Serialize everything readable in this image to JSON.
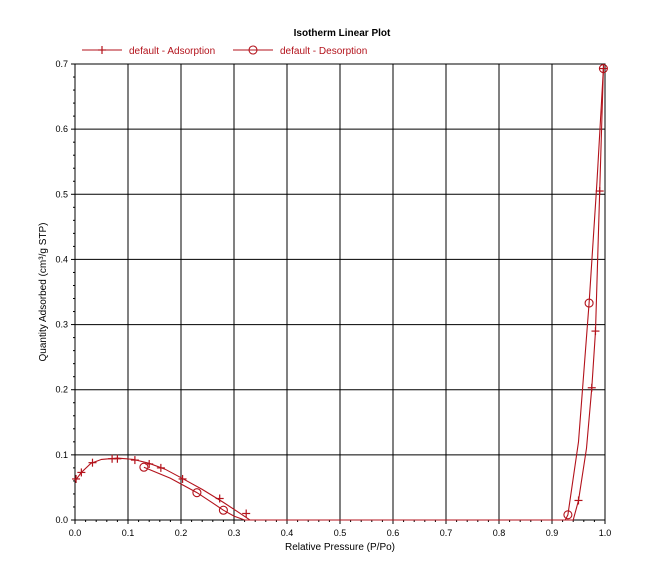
{
  "chart_data": {
    "type": "line",
    "title": "Isotherm Linear Plot",
    "xlabel": "Relative Pressure (P/Po)",
    "ylabel": "Quantity Adsorbed (cm³/g STP)",
    "xlim": [
      0,
      1.0
    ],
    "ylim": [
      0,
      0.7
    ],
    "x_ticks": [
      "0.0",
      "0.1",
      "0.2",
      "0.3",
      "0.4",
      "0.5",
      "0.6",
      "0.7",
      "0.8",
      "0.9",
      "1.0"
    ],
    "y_ticks": [
      "0.0",
      "0.1",
      "0.2",
      "0.3",
      "0.4",
      "0.5",
      "0.6",
      "0.7"
    ],
    "grid": true,
    "legend_position": "top-left",
    "series": [
      {
        "name": "default - Adsorption",
        "color": "#b3121b",
        "marker": "plus",
        "points": [
          [
            0.002,
            0.063
          ],
          [
            0.012,
            0.073
          ],
          [
            0.033,
            0.088
          ],
          [
            0.07,
            0.094
          ],
          [
            0.08,
            0.094
          ],
          [
            0.113,
            0.092
          ],
          [
            0.14,
            0.086
          ],
          [
            0.162,
            0.08
          ],
          [
            0.203,
            0.063
          ],
          [
            0.273,
            0.033
          ],
          [
            0.323,
            0.01
          ],
          [
            0.95,
            0.03
          ],
          [
            0.975,
            0.203
          ],
          [
            0.982,
            0.29
          ],
          [
            0.99,
            0.505
          ],
          [
            0.997,
            0.693
          ]
        ],
        "curve": [
          [
            0.0,
            0.06
          ],
          [
            0.012,
            0.073
          ],
          [
            0.03,
            0.087
          ],
          [
            0.05,
            0.093
          ],
          [
            0.08,
            0.095
          ],
          [
            0.11,
            0.093
          ],
          [
            0.14,
            0.087
          ],
          [
            0.17,
            0.078
          ],
          [
            0.2,
            0.065
          ],
          [
            0.24,
            0.047
          ],
          [
            0.28,
            0.027
          ],
          [
            0.31,
            0.011
          ],
          [
            0.33,
            0.0
          ],
          [
            0.94,
            0.0
          ],
          [
            0.95,
            0.03
          ],
          [
            0.965,
            0.11
          ],
          [
            0.975,
            0.203
          ],
          [
            0.982,
            0.29
          ],
          [
            0.99,
            0.505
          ],
          [
            0.997,
            0.693
          ]
        ]
      },
      {
        "name": "default - Desorption",
        "color": "#b3121b",
        "marker": "circle",
        "points": [
          [
            0.13,
            0.081
          ],
          [
            0.23,
            0.042
          ],
          [
            0.28,
            0.015
          ],
          [
            0.93,
            0.008
          ],
          [
            0.97,
            0.333
          ],
          [
            0.997,
            0.693
          ]
        ],
        "curve": [
          [
            0.13,
            0.081
          ],
          [
            0.18,
            0.064
          ],
          [
            0.23,
            0.042
          ],
          [
            0.26,
            0.026
          ],
          [
            0.28,
            0.015
          ],
          [
            0.3,
            0.006
          ],
          [
            0.32,
            0.0
          ],
          [
            0.925,
            0.0
          ],
          [
            0.93,
            0.008
          ],
          [
            0.95,
            0.12
          ],
          [
            0.97,
            0.333
          ],
          [
            0.985,
            0.52
          ],
          [
            0.997,
            0.693
          ]
        ]
      }
    ]
  }
}
